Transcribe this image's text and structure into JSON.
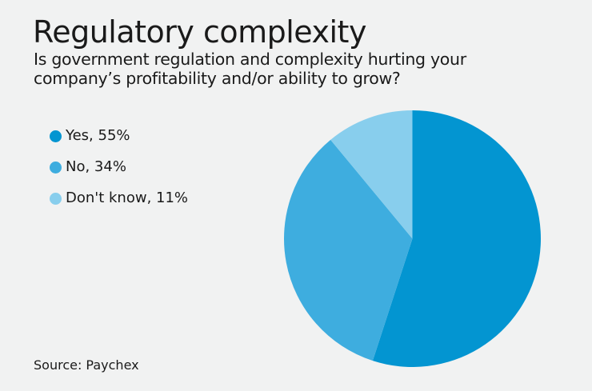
{
  "header": {
    "title": "Regulatory complexity",
    "subtitle": "Is government regulation and complexity hurting your company’s profitability and/or ability to grow?"
  },
  "legend": {
    "items": [
      {
        "label": "Yes, 55%",
        "color": "#0395d1"
      },
      {
        "label": "No, 34%",
        "color": "#3eaddf"
      },
      {
        "label": "Don't know, 11%",
        "color": "#88ceed"
      }
    ]
  },
  "source": "Source: Paychex",
  "colors": {
    "background": "#f1f2f2",
    "text": "#1a1a1a"
  },
  "chart_data": {
    "type": "pie",
    "title": "Regulatory complexity",
    "subtitle": "Is government regulation and complexity hurting your company’s profitability and/or ability to grow?",
    "categories": [
      "Yes",
      "No",
      "Don't know"
    ],
    "values": [
      55,
      34,
      11
    ],
    "unit": "%",
    "colors": [
      "#0395d1",
      "#3eaddf",
      "#88ceed"
    ],
    "start_angle": "12 o'clock, clockwise",
    "legend_position": "left",
    "source": "Source: Paychex"
  }
}
